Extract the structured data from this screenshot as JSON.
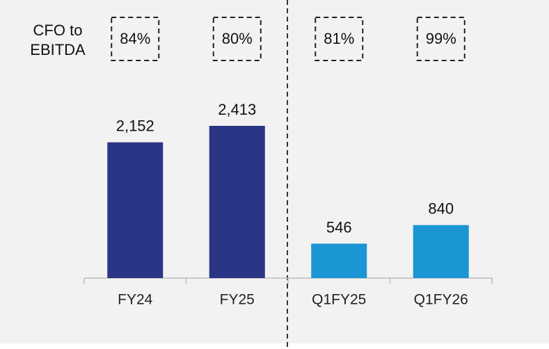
{
  "chart_data": {
    "type": "bar",
    "categories": [
      "FY24",
      "FY25",
      "Q1FY25",
      "Q1FY26"
    ],
    "values": [
      2152,
      2413,
      546,
      840
    ],
    "value_labels": [
      "2,152",
      "2,413",
      "546",
      "840"
    ],
    "colors": [
      "#2b3585",
      "#2b3585",
      "#1a96d4",
      "#1a96d4"
    ],
    "ylim": [
      0,
      4000
    ],
    "annotation": {
      "label": [
        "CFO to",
        "EBITDA"
      ],
      "values": [
        84,
        80,
        81,
        99
      ],
      "value_labels": [
        "84%",
        "80%",
        "81%",
        "99%"
      ]
    }
  }
}
